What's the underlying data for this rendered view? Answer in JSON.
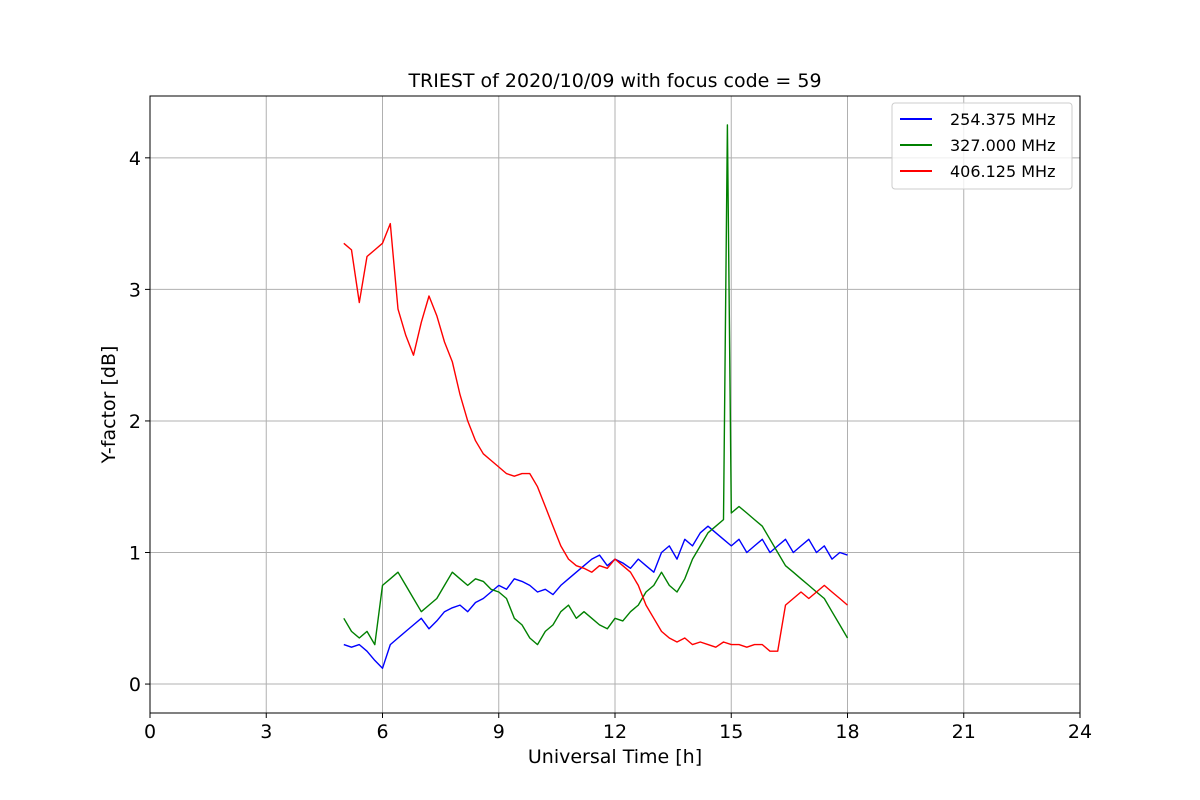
{
  "chart_data": {
    "type": "line",
    "title": "TRIEST of 2020/10/09 with focus code = 59",
    "xlabel": "Universal Time [h]",
    "ylabel": "Y-factor [dB]",
    "xlim": [
      0,
      24
    ],
    "ylim": [
      -0.22,
      4.47
    ],
    "xticks": [
      0,
      3,
      6,
      9,
      12,
      15,
      18,
      21,
      24
    ],
    "yticks": [
      0,
      1,
      2,
      3,
      4
    ],
    "grid": true,
    "legend_position": "top-right",
    "series": [
      {
        "name": "254.375 MHz",
        "color": "#0000ff",
        "x": [
          5.0,
          5.2,
          5.4,
          5.6,
          5.8,
          6.0,
          6.2,
          6.4,
          6.6,
          6.8,
          7.0,
          7.2,
          7.4,
          7.6,
          7.8,
          8.0,
          8.2,
          8.4,
          8.6,
          8.8,
          9.0,
          9.2,
          9.4,
          9.6,
          9.8,
          10.0,
          10.2,
          10.4,
          10.6,
          10.8,
          11.0,
          11.2,
          11.4,
          11.6,
          11.8,
          12.0,
          12.2,
          12.4,
          12.6,
          12.8,
          13.0,
          13.2,
          13.4,
          13.6,
          13.8,
          14.0,
          14.2,
          14.4,
          14.6,
          14.8,
          15.0,
          15.2,
          15.4,
          15.6,
          15.8,
          16.0,
          16.2,
          16.4,
          16.6,
          16.8,
          17.0,
          17.2,
          17.4,
          17.6,
          17.8,
          18.0
        ],
        "y": [
          0.3,
          0.28,
          0.3,
          0.25,
          0.18,
          0.12,
          0.3,
          0.35,
          0.4,
          0.45,
          0.5,
          0.42,
          0.48,
          0.55,
          0.58,
          0.6,
          0.55,
          0.62,
          0.65,
          0.7,
          0.75,
          0.72,
          0.8,
          0.78,
          0.75,
          0.7,
          0.72,
          0.68,
          0.75,
          0.8,
          0.85,
          0.9,
          0.95,
          0.98,
          0.9,
          0.95,
          0.92,
          0.88,
          0.95,
          0.9,
          0.85,
          1.0,
          1.05,
          0.95,
          1.1,
          1.05,
          1.15,
          1.2,
          1.15,
          1.1,
          1.05,
          1.1,
          1.0,
          1.05,
          1.1,
          1.0,
          1.05,
          1.1,
          1.0,
          1.05,
          1.1,
          1.0,
          1.05,
          0.95,
          1.0,
          0.98
        ]
      },
      {
        "name": "327.000 MHz",
        "color": "#008000",
        "x": [
          5.0,
          5.2,
          5.4,
          5.6,
          5.8,
          6.0,
          6.2,
          6.4,
          6.6,
          6.8,
          7.0,
          7.2,
          7.4,
          7.6,
          7.8,
          8.0,
          8.2,
          8.4,
          8.6,
          8.8,
          9.0,
          9.2,
          9.4,
          9.6,
          9.8,
          10.0,
          10.2,
          10.4,
          10.6,
          10.8,
          11.0,
          11.2,
          11.4,
          11.6,
          11.8,
          12.0,
          12.2,
          12.4,
          12.6,
          12.8,
          13.0,
          13.2,
          13.4,
          13.6,
          13.8,
          14.0,
          14.2,
          14.4,
          14.6,
          14.8,
          14.9,
          15.0,
          15.2,
          15.4,
          15.6,
          15.8,
          16.0,
          16.2,
          16.4,
          16.6,
          16.8,
          17.0,
          17.2,
          17.4,
          17.6,
          17.8,
          18.0
        ],
        "y": [
          0.5,
          0.4,
          0.35,
          0.4,
          0.3,
          0.75,
          0.8,
          0.85,
          0.75,
          0.65,
          0.55,
          0.6,
          0.65,
          0.75,
          0.85,
          0.8,
          0.75,
          0.8,
          0.78,
          0.72,
          0.7,
          0.65,
          0.5,
          0.45,
          0.35,
          0.3,
          0.4,
          0.45,
          0.55,
          0.6,
          0.5,
          0.55,
          0.5,
          0.45,
          0.42,
          0.5,
          0.48,
          0.55,
          0.6,
          0.7,
          0.75,
          0.85,
          0.75,
          0.7,
          0.8,
          0.95,
          1.05,
          1.15,
          1.2,
          1.25,
          4.25,
          1.3,
          1.35,
          1.3,
          1.25,
          1.2,
          1.1,
          1.0,
          0.9,
          0.85,
          0.8,
          0.75,
          0.7,
          0.65,
          0.55,
          0.45,
          0.35
        ]
      },
      {
        "name": "406.125 MHz",
        "color": "#ff0000",
        "x": [
          5.0,
          5.2,
          5.4,
          5.6,
          5.8,
          6.0,
          6.2,
          6.4,
          6.6,
          6.8,
          7.0,
          7.2,
          7.4,
          7.6,
          7.8,
          8.0,
          8.2,
          8.4,
          8.6,
          8.8,
          9.0,
          9.2,
          9.4,
          9.6,
          9.8,
          10.0,
          10.2,
          10.4,
          10.6,
          10.8,
          11.0,
          11.2,
          11.4,
          11.6,
          11.8,
          12.0,
          12.2,
          12.4,
          12.6,
          12.8,
          13.0,
          13.2,
          13.4,
          13.6,
          13.8,
          14.0,
          14.2,
          14.4,
          14.6,
          14.8,
          15.0,
          15.2,
          15.4,
          15.6,
          15.8,
          16.0,
          16.2,
          16.4,
          16.6,
          16.8,
          17.0,
          17.2,
          17.4,
          17.6,
          17.8,
          18.0
        ],
        "y": [
          3.35,
          3.3,
          2.9,
          3.25,
          3.3,
          3.35,
          3.5,
          2.85,
          2.65,
          2.5,
          2.75,
          2.95,
          2.8,
          2.6,
          2.45,
          2.2,
          2.0,
          1.85,
          1.75,
          1.7,
          1.65,
          1.6,
          1.58,
          1.6,
          1.6,
          1.5,
          1.35,
          1.2,
          1.05,
          0.95,
          0.9,
          0.88,
          0.85,
          0.9,
          0.88,
          0.95,
          0.9,
          0.85,
          0.75,
          0.6,
          0.5,
          0.4,
          0.35,
          0.32,
          0.35,
          0.3,
          0.32,
          0.3,
          0.28,
          0.32,
          0.3,
          0.3,
          0.28,
          0.3,
          0.3,
          0.25,
          0.25,
          0.6,
          0.65,
          0.7,
          0.65,
          0.7,
          0.75,
          0.7,
          0.65,
          0.6
        ]
      }
    ]
  }
}
